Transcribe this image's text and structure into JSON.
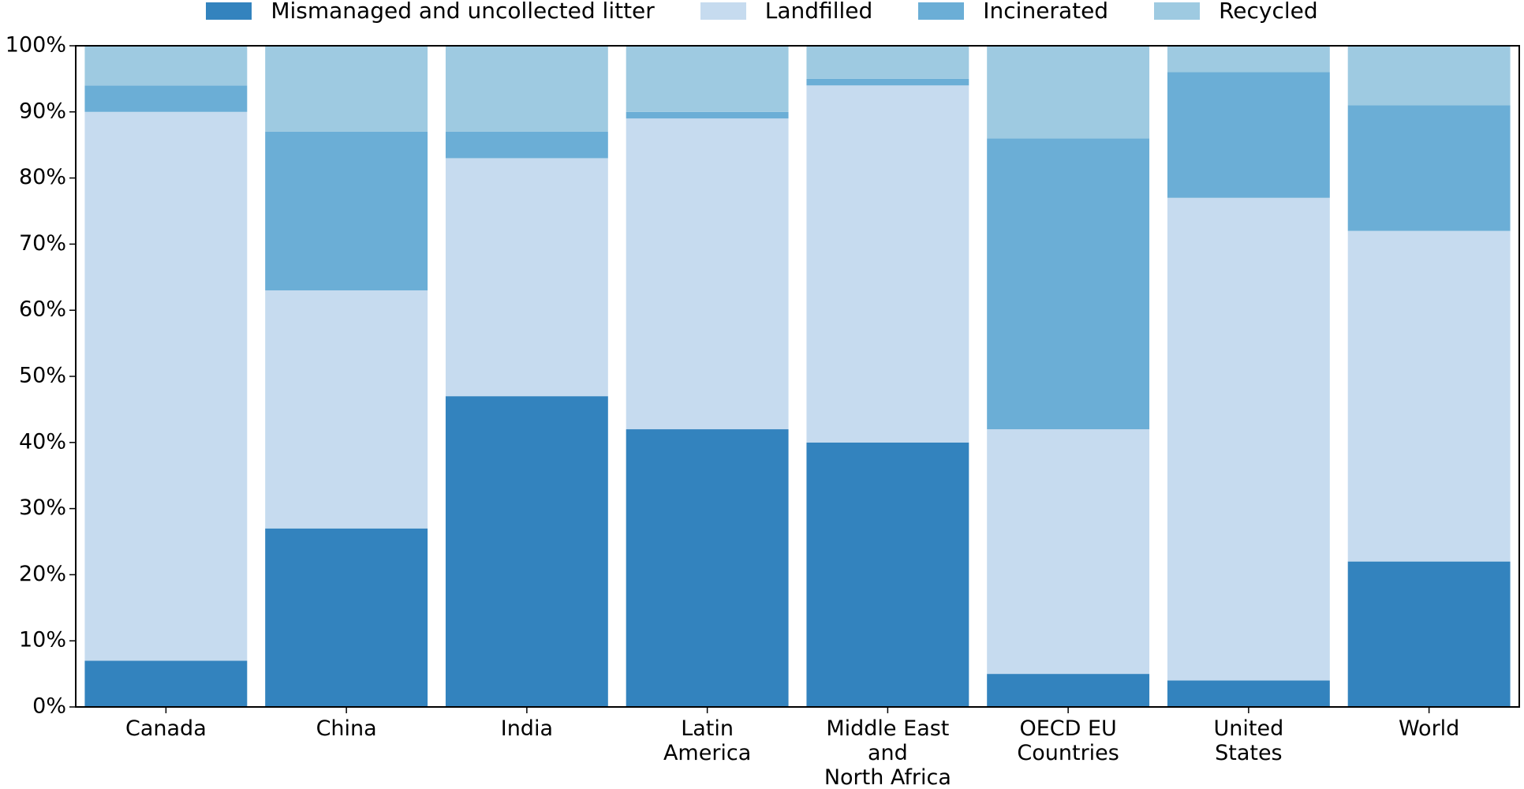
{
  "chart_data": {
    "type": "stacked_bar",
    "categories": [
      "Canada",
      "China",
      "India",
      "Latin\nAmerica",
      "Middle East\nand\nNorth Africa",
      "OECD EU\nCountries",
      "United\nStates",
      "World"
    ],
    "series": [
      {
        "name": "Mismanaged and uncollected litter",
        "color": "#3383be",
        "values": [
          7,
          27,
          47,
          42,
          40,
          5,
          4,
          22
        ]
      },
      {
        "name": "Landfilled",
        "color": "#c6dbef",
        "values": [
          83,
          36,
          36,
          47,
          54,
          37,
          73,
          50
        ]
      },
      {
        "name": "Incinerated",
        "color": "#6baed6",
        "values": [
          4,
          24,
          4,
          1,
          1,
          44,
          19,
          19
        ]
      },
      {
        "name": "Recycled",
        "color": "#9ecae1",
        "values": [
          6,
          13,
          13,
          10,
          5,
          14,
          4,
          9
        ]
      }
    ],
    "ylim": [
      0,
      100
    ],
    "yticks": [
      {
        "value": 0,
        "label": "0%"
      },
      {
        "value": 10,
        "label": "10%"
      },
      {
        "value": 20,
        "label": "20%"
      },
      {
        "value": 30,
        "label": "30%"
      },
      {
        "value": 40,
        "label": "40%"
      },
      {
        "value": 50,
        "label": "50%"
      },
      {
        "value": 60,
        "label": "60%"
      },
      {
        "value": 70,
        "label": "70%"
      },
      {
        "value": 80,
        "label": "80%"
      },
      {
        "value": 90,
        "label": "90%"
      },
      {
        "value": 100,
        "label": "100%"
      }
    ],
    "legend": "top"
  }
}
